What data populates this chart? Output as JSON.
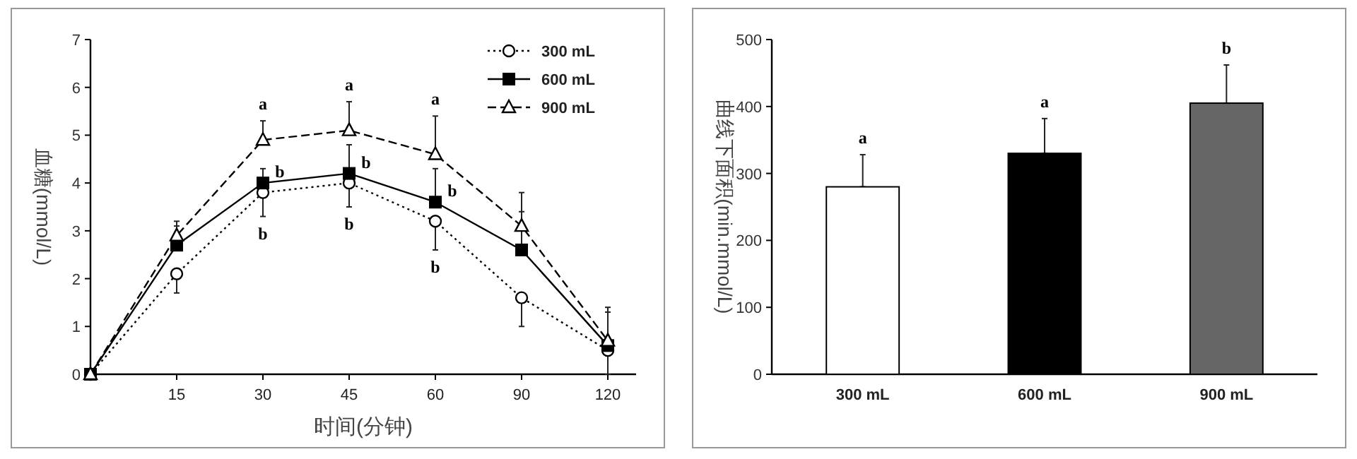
{
  "chart_data": [
    {
      "type": "line",
      "xlabel": "时间(分钟)",
      "ylabel": "血糖(mmol/L)",
      "categories": [
        null,
        "15",
        "30",
        "45",
        "60",
        "90",
        "120"
      ],
      "ylim": [
        0,
        7
      ],
      "yticks": [
        0,
        1,
        2,
        3,
        4,
        5,
        6,
        7
      ],
      "grid": false,
      "legend": "top right",
      "series": [
        {
          "name": "300 mL",
          "color": "#000000",
          "marker": "circle",
          "line_style": "dotted",
          "values": [
            0,
            2.1,
            3.8,
            4.0,
            3.2,
            1.6,
            0.5
          ],
          "errors": [
            null,
            [
              1.7,
              2.1
            ],
            [
              3.3,
              3.8
            ],
            [
              3.5,
              4.0
            ],
            [
              2.6,
              3.2
            ],
            [
              1.0,
              1.6
            ],
            [
              0.0,
              0.5
            ]
          ]
        },
        {
          "name": "600 mL",
          "color": "#000000",
          "marker": "square",
          "line_style": "solid",
          "values": [
            0,
            2.7,
            4.0,
            4.2,
            3.6,
            2.6,
            0.6
          ],
          "errors": [
            null,
            [
              2.7,
              3.1
            ],
            [
              4.0,
              4.3
            ],
            [
              4.2,
              4.8
            ],
            [
              3.6,
              4.3
            ],
            [
              2.6,
              3.4
            ],
            [
              0.6,
              1.3
            ]
          ]
        },
        {
          "name": "900 mL",
          "color": "#000000",
          "marker": "triangle",
          "line_style": "dashed",
          "values": [
            0,
            2.9,
            4.9,
            5.1,
            4.6,
            3.1,
            0.7
          ],
          "errors": [
            null,
            [
              2.9,
              3.2
            ],
            [
              4.9,
              5.3
            ],
            [
              5.1,
              5.7
            ],
            [
              4.6,
              5.4
            ],
            [
              3.1,
              3.8
            ],
            [
              0.7,
              1.4
            ]
          ]
        }
      ],
      "annotations": [
        {
          "text": "a",
          "x": "30",
          "y": 5.3
        },
        {
          "text": "b",
          "x": "30",
          "y": 4.0
        },
        {
          "text": "b",
          "x": "30",
          "y": 3.3
        },
        {
          "text": "a",
          "x": "45",
          "y": 5.7
        },
        {
          "text": "b",
          "x": "45",
          "y": 4.2
        },
        {
          "text": "b",
          "x": "45",
          "y": 3.5
        },
        {
          "text": "a",
          "x": "60",
          "y": 5.4
        },
        {
          "text": "b",
          "x": "60",
          "y": 3.6
        },
        {
          "text": "b",
          "x": "60",
          "y": 2.6
        }
      ]
    },
    {
      "type": "bar",
      "ylabel": "曲线下面积(min.mmol/L)",
      "categories": [
        "300 mL",
        "600 mL",
        "900 mL"
      ],
      "values": [
        280,
        330,
        405
      ],
      "errors": [
        [
          280,
          328
        ],
        [
          330,
          382
        ],
        [
          405,
          462
        ]
      ],
      "colors": [
        "#ffffff",
        "#000000",
        "#666666"
      ],
      "ylim": [
        0,
        500
      ],
      "yticks": [
        0,
        100,
        200,
        300,
        400,
        500
      ],
      "grid": false,
      "annotations": [
        {
          "text": "a",
          "x": "300 mL",
          "y": 328
        },
        {
          "text": "a",
          "x": "600 mL",
          "y": 382
        },
        {
          "text": "b",
          "x": "900 mL",
          "y": 462
        }
      ]
    }
  ]
}
